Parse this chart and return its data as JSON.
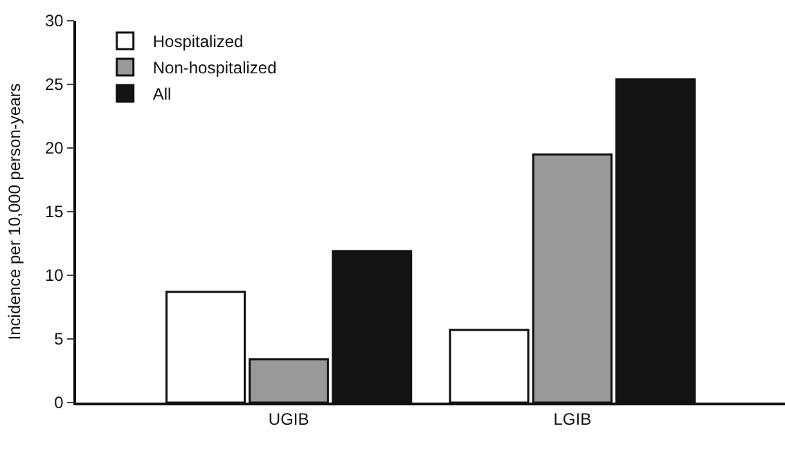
{
  "chart_data": {
    "type": "bar",
    "ylabel": "Incidence per 10,000 person-years",
    "categories": [
      "UGIB",
      "LGIB"
    ],
    "series": [
      {
        "name": "Hospitalized",
        "color": "#ffffff",
        "values": [
          8.7,
          5.7
        ]
      },
      {
        "name": "Non-hospitalized",
        "color": "#999999",
        "values": [
          3.4,
          19.5
        ]
      },
      {
        "name": "All",
        "color": "#141414",
        "values": [
          11.9,
          25.4
        ]
      }
    ],
    "ylim": [
      0,
      30
    ],
    "yticks": [
      0,
      5,
      10,
      15,
      20,
      25,
      30
    ],
    "legend": "top left"
  }
}
